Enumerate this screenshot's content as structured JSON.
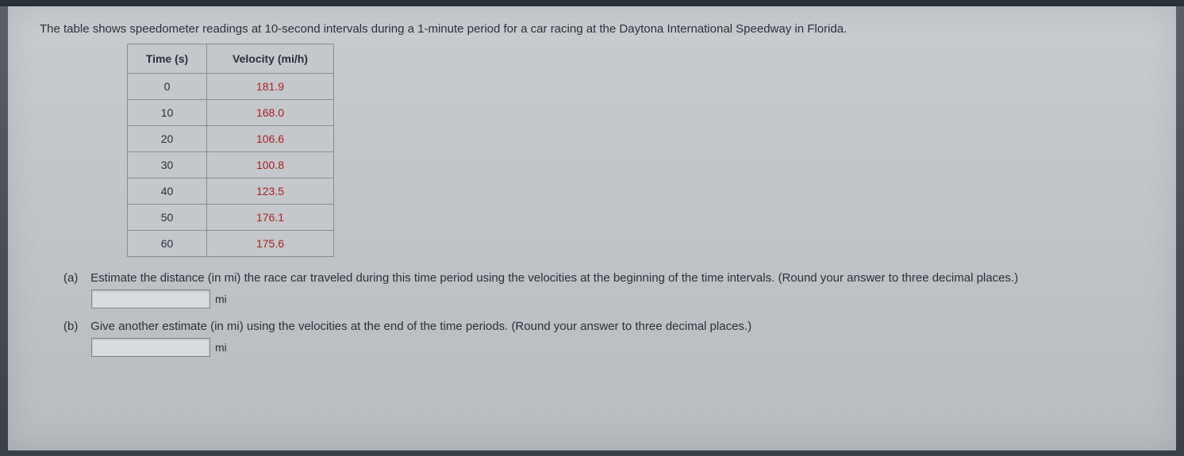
{
  "intro": "The table shows speedometer readings at 10-second intervals during a 1-minute period for a car racing at the Daytona International Speedway in Florida.",
  "table": {
    "headers": {
      "time": "Time (s)",
      "velocity": "Velocity (mi/h)"
    },
    "rows": [
      {
        "time": "0",
        "velocity": "181.9"
      },
      {
        "time": "10",
        "velocity": "168.0"
      },
      {
        "time": "20",
        "velocity": "106.6"
      },
      {
        "time": "30",
        "velocity": "100.8"
      },
      {
        "time": "40",
        "velocity": "123.5"
      },
      {
        "time": "50",
        "velocity": "176.1"
      },
      {
        "time": "60",
        "velocity": "175.6"
      }
    ],
    "styling": {
      "border_color": "#888c90",
      "background_color": "#c4c8cc",
      "header_text_color": "#2a3038",
      "time_text_color": "#2a3038",
      "velocity_text_color": "#aa2020",
      "font_size": 14,
      "header_font_weight": "bold",
      "time_col_width": 100,
      "velocity_col_width": 160,
      "cell_padding": "8px 18px"
    }
  },
  "parts": {
    "a": {
      "label": "(a)",
      "text": "Estimate the distance (in mi) the race car traveled during this time period using the velocities at the beginning of the time intervals. (Round your answer to three decimal places.)",
      "unit": "mi"
    },
    "b": {
      "label": "(b)",
      "text": "Give another estimate (in mi) using the velocities at the end of the time periods. (Round your answer to three decimal places.)",
      "unit": "mi"
    }
  },
  "page_styling": {
    "body_background": "#b8bcc0",
    "text_color": "#2a3038",
    "font_family": "Arial",
    "intro_font_size": 15,
    "question_font_size": 15,
    "answer_box_width": 150,
    "answer_box_height": 24,
    "answer_box_bg": "#d8dce0",
    "answer_box_border": "#808488"
  }
}
